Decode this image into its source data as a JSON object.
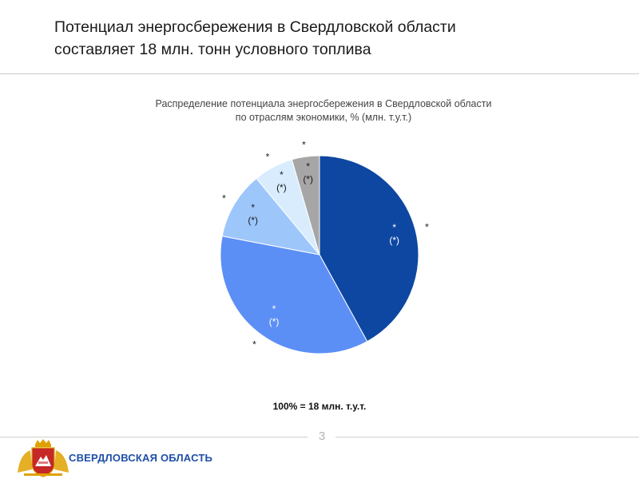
{
  "slide": {
    "title_line1": "Потенциал энергосбережения в Свердловской области",
    "title_line2": "составляет 18 млн. тонн условного топлива",
    "page_number": "3"
  },
  "chart_data": {
    "type": "pie",
    "title_line1": "Распределение потенциала энергосбережения в Свердловской области",
    "title_line2": "по отраслям экономики, % (млн. т.у.т.)",
    "slices": [
      {
        "value": 42,
        "color": "#0d47a1",
        "inner_label": [
          "*",
          "(*)"
        ],
        "outer_label": "*"
      },
      {
        "value": 36,
        "color": "#5c8ff5",
        "inner_label": [
          "*",
          "(*)"
        ],
        "outer_label": "*"
      },
      {
        "value": 11,
        "color": "#9dc6fb",
        "inner_label": [
          "*",
          "(*)"
        ],
        "outer_label": "*"
      },
      {
        "value": 6.5,
        "color": "#d8ecfd",
        "inner_label": [
          "*",
          "(*)"
        ],
        "outer_label": "*"
      },
      {
        "value": 4.5,
        "color": "#a6a6a6",
        "inner_label": [
          "*",
          "(*)"
        ],
        "outer_label": "*"
      }
    ],
    "total_note": "100% = 18 млн. т.у.т."
  },
  "footer": {
    "region_name": "СВЕРДЛОВСКАЯ ОБЛАСТЬ"
  },
  "colors": {
    "accent": "#1f4fa8",
    "emblem_red": "#c62828",
    "emblem_gold": "#e0a100"
  }
}
